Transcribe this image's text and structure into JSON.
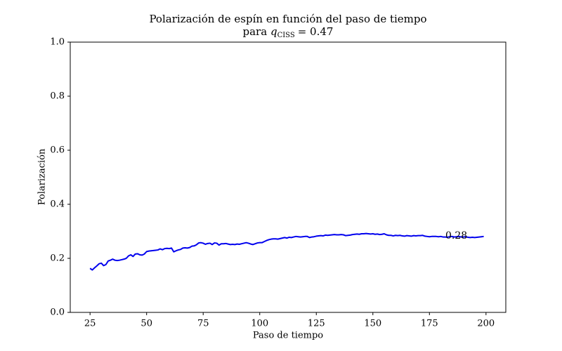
{
  "chart_data": {
    "type": "line",
    "title": "Polarización de espín en función del paso de tiempo",
    "subtitle": {
      "prefix": "para",
      "symbol": "q",
      "subscript": "CISS",
      "suffix": "= 0.47"
    },
    "xlabel": "Paso de tiempo",
    "ylabel": "Polarización",
    "annotation": "0.28",
    "color": "#0000ee",
    "x": [
      25,
      26,
      27,
      28,
      29,
      30,
      31,
      32,
      33,
      34,
      35,
      36,
      37,
      38,
      39,
      40,
      41,
      42,
      43,
      44,
      45,
      46,
      47,
      48,
      49,
      50,
      51,
      52,
      53,
      54,
      55,
      56,
      57,
      58,
      59,
      60,
      61,
      62,
      63,
      64,
      65,
      66,
      67,
      68,
      69,
      70,
      71,
      72,
      73,
      74,
      75,
      76,
      77,
      78,
      79,
      80,
      81,
      82,
      83,
      84,
      85,
      86,
      87,
      88,
      89,
      90,
      91,
      92,
      93,
      94,
      95,
      96,
      97,
      98,
      99,
      100,
      101,
      102,
      103,
      104,
      105,
      106,
      107,
      108,
      109,
      110,
      111,
      112,
      113,
      114,
      115,
      116,
      117,
      118,
      119,
      120,
      121,
      122,
      123,
      124,
      125,
      126,
      127,
      128,
      129,
      130,
      131,
      132,
      133,
      134,
      135,
      136,
      137,
      138,
      139,
      140,
      141,
      142,
      143,
      144,
      145,
      146,
      147,
      148,
      149,
      150,
      151,
      152,
      153,
      154,
      155,
      156,
      157,
      158,
      159,
      160,
      161,
      162,
      163,
      164,
      165,
      166,
      167,
      168,
      169,
      170,
      171,
      172,
      173,
      174,
      175,
      176,
      177,
      178,
      179,
      180,
      181,
      182,
      183,
      184,
      185,
      186,
      187,
      188,
      189,
      190,
      191,
      192,
      193,
      194,
      195,
      196,
      197,
      198,
      199
    ],
    "values": [
      0.163,
      0.157,
      0.165,
      0.172,
      0.18,
      0.182,
      0.173,
      0.177,
      0.19,
      0.193,
      0.197,
      0.193,
      0.192,
      0.193,
      0.195,
      0.197,
      0.2,
      0.209,
      0.213,
      0.207,
      0.216,
      0.217,
      0.213,
      0.212,
      0.216,
      0.225,
      0.227,
      0.228,
      0.229,
      0.23,
      0.231,
      0.235,
      0.232,
      0.236,
      0.237,
      0.236,
      0.238,
      0.224,
      0.228,
      0.231,
      0.233,
      0.238,
      0.239,
      0.238,
      0.24,
      0.245,
      0.246,
      0.25,
      0.257,
      0.258,
      0.256,
      0.252,
      0.255,
      0.256,
      0.251,
      0.257,
      0.256,
      0.249,
      0.254,
      0.254,
      0.255,
      0.253,
      0.251,
      0.252,
      0.251,
      0.253,
      0.252,
      0.254,
      0.256,
      0.258,
      0.256,
      0.253,
      0.251,
      0.254,
      0.257,
      0.258,
      0.258,
      0.262,
      0.266,
      0.269,
      0.271,
      0.272,
      0.272,
      0.271,
      0.273,
      0.275,
      0.277,
      0.275,
      0.278,
      0.277,
      0.279,
      0.281,
      0.28,
      0.279,
      0.28,
      0.281,
      0.281,
      0.277,
      0.279,
      0.28,
      0.282,
      0.283,
      0.284,
      0.283,
      0.286,
      0.285,
      0.286,
      0.287,
      0.288,
      0.287,
      0.287,
      0.288,
      0.287,
      0.284,
      0.285,
      0.286,
      0.288,
      0.289,
      0.29,
      0.289,
      0.291,
      0.291,
      0.292,
      0.291,
      0.29,
      0.291,
      0.289,
      0.29,
      0.288,
      0.289,
      0.291,
      0.287,
      0.285,
      0.285,
      0.283,
      0.285,
      0.284,
      0.285,
      0.283,
      0.282,
      0.284,
      0.283,
      0.282,
      0.284,
      0.283,
      0.284,
      0.284,
      0.285,
      0.282,
      0.281,
      0.28,
      0.281,
      0.281,
      0.281,
      0.28,
      0.281,
      0.279,
      0.279,
      0.278,
      0.28,
      0.281,
      0.279,
      0.28,
      0.281,
      0.279,
      0.279,
      0.28,
      0.278,
      0.277,
      0.278,
      0.277,
      0.278,
      0.279,
      0.28,
      0.281
    ],
    "xlim": [
      16.25,
      208.75
    ],
    "xticks": [
      25,
      50,
      75,
      100,
      125,
      150,
      175,
      200
    ],
    "ylim": [
      0,
      1
    ],
    "yticks": [
      {
        "value": 0,
        "label": "0.0"
      },
      0.2,
      0.4,
      0.6,
      0.8,
      {
        "value": 1,
        "label": "1.0"
      }
    ],
    "grid": false
  }
}
